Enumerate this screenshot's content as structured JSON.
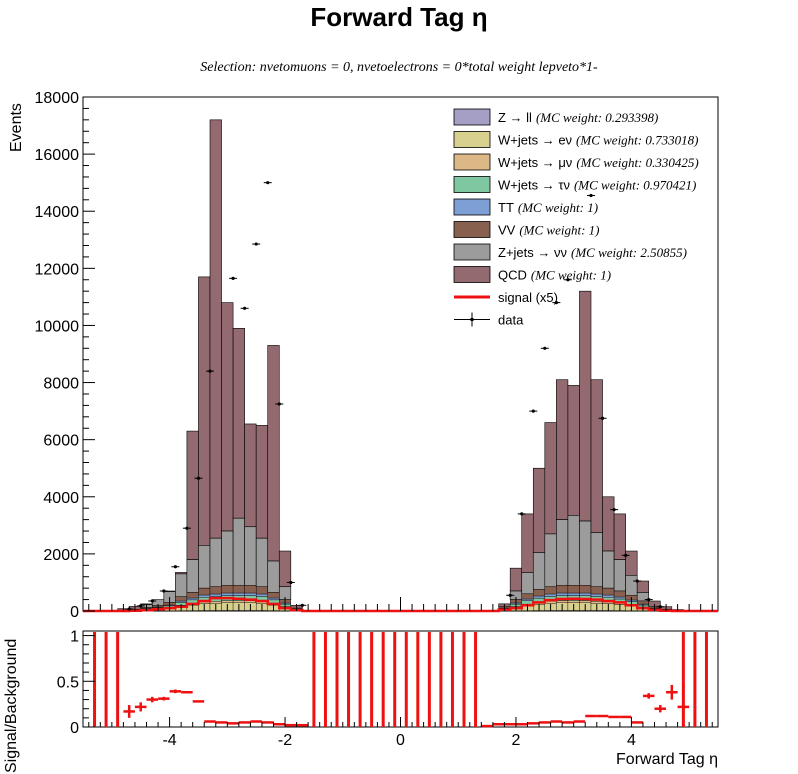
{
  "chart_data": [
    {
      "type": "stacked-histogram",
      "title": "Forward Tag η",
      "subtitle": "Selection: nvetomuons = 0, nvetoelectrons = 0*total weight lepveto*1-",
      "ylabel": "Events",
      "xlim": [
        -5.5,
        5.5
      ],
      "ylim": [
        0,
        18000
      ],
      "bin_width": 0.2,
      "x_ticks": [
        -4,
        -2,
        0,
        2,
        4
      ],
      "y_ticks": [
        0,
        2000,
        4000,
        6000,
        8000,
        10000,
        12000,
        14000,
        16000,
        18000
      ],
      "legend_position": "top-right",
      "legend": [
        {
          "label": "Z → ll",
          "weight": "(MC weight: 0.293398)",
          "color": "#a59ec5",
          "kind": "box"
        },
        {
          "label": "W+jets → eν",
          "weight": "(MC weight: 0.733018)",
          "color": "#d8d08e",
          "kind": "box"
        },
        {
          "label": "W+jets → μν",
          "weight": "(MC weight: 0.330425)",
          "color": "#dcb886",
          "kind": "box"
        },
        {
          "label": "W+jets → τν",
          "weight": "(MC weight: 0.970421)",
          "color": "#7fc7a0",
          "kind": "box"
        },
        {
          "label": "TT",
          "weight": "(MC weight: 1)",
          "color": "#7e9ed6",
          "kind": "box"
        },
        {
          "label": "VV",
          "weight": "(MC weight: 1)",
          "color": "#876050",
          "kind": "box"
        },
        {
          "label": "Z+jets → νν",
          "weight": "(MC weight: 2.50855)",
          "color": "#9c9c9c",
          "kind": "box"
        },
        {
          "label": "QCD",
          "weight": "(MC weight: 1)",
          "color": "#936a70",
          "kind": "box"
        },
        {
          "label": "signal (x5)",
          "weight": "",
          "color": "#ee1111",
          "kind": "line"
        },
        {
          "label": "data",
          "weight": "",
          "color": "#000000",
          "kind": "marker"
        }
      ],
      "bins": [
        {
          "x": -4.8,
          "bkg": 30,
          "top": 80,
          "sig": 0
        },
        {
          "x": -4.6,
          "bkg": 60,
          "top": 160,
          "sig": 10
        },
        {
          "x": -4.4,
          "bkg": 120,
          "top": 250,
          "sig": 25
        },
        {
          "x": -4.2,
          "bkg": 200,
          "top": 400,
          "sig": 60
        },
        {
          "x": -4.0,
          "bkg": 300,
          "top": 700,
          "sig": 100
        },
        {
          "x": -3.8,
          "bkg": 500,
          "top": 1350,
          "sig": 150
        },
        {
          "x": -3.6,
          "bkg": 650,
          "top": 6300,
          "sig": 250
        },
        {
          "x": -3.4,
          "bkg": 800,
          "top": 11700,
          "sig": 350
        },
        {
          "x": -3.2,
          "bkg": 850,
          "top": 17200,
          "sig": 450
        },
        {
          "x": -3.0,
          "bkg": 900,
          "top": 10800,
          "sig": 450
        },
        {
          "x": -2.8,
          "bkg": 900,
          "top": 9900,
          "sig": 430
        },
        {
          "x": -2.6,
          "bkg": 900,
          "top": 6550,
          "sig": 400
        },
        {
          "x": -2.4,
          "bkg": 850,
          "top": 6500,
          "sig": 350
        },
        {
          "x": -2.2,
          "bkg": 650,
          "top": 9300,
          "sig": 250
        },
        {
          "x": -2.0,
          "bkg": 400,
          "top": 2100,
          "sig": 100
        },
        {
          "x": -1.8,
          "bkg": 100,
          "top": 200,
          "sig": 30
        },
        {
          "x": 1.8,
          "bkg": 150,
          "top": 250,
          "sig": 50
        },
        {
          "x": 2.0,
          "bkg": 400,
          "top": 1500,
          "sig": 100
        },
        {
          "x": 2.2,
          "bkg": 600,
          "top": 3400,
          "sig": 200
        },
        {
          "x": 2.4,
          "bkg": 750,
          "top": 5000,
          "sig": 300
        },
        {
          "x": 2.6,
          "bkg": 850,
          "top": 6600,
          "sig": 380
        },
        {
          "x": 2.8,
          "bkg": 900,
          "top": 8100,
          "sig": 420
        },
        {
          "x": 3.0,
          "bkg": 900,
          "top": 7900,
          "sig": 430
        },
        {
          "x": 3.2,
          "bkg": 900,
          "top": 11200,
          "sig": 420
        },
        {
          "x": 3.4,
          "bkg": 850,
          "top": 8100,
          "sig": 400
        },
        {
          "x": 3.6,
          "bkg": 800,
          "top": 4000,
          "sig": 350
        },
        {
          "x": 3.8,
          "bkg": 700,
          "top": 3400,
          "sig": 300
        },
        {
          "x": 4.0,
          "bkg": 550,
          "top": 2100,
          "sig": 200
        },
        {
          "x": 4.2,
          "bkg": 350,
          "top": 1050,
          "sig": 100
        },
        {
          "x": 4.4,
          "bkg": 150,
          "top": 350,
          "sig": 40
        },
        {
          "x": 4.6,
          "bkg": 60,
          "top": 150,
          "sig": 10
        },
        {
          "x": 4.8,
          "bkg": 20,
          "top": 50,
          "sig": 0
        }
      ],
      "layers": [
        {
          "name": "Z → ll",
          "color": "#a59ec5",
          "frac": 0.02
        },
        {
          "name": "W+jets → eν",
          "color": "#d8d08e",
          "frac": 0.3
        },
        {
          "name": "W+jets → μν",
          "color": "#dcb886",
          "frac": 0.08
        },
        {
          "name": "W+jets → τν",
          "color": "#7fc7a0",
          "frac": 0.2
        },
        {
          "name": "TT",
          "color": "#7e9ed6",
          "frac": 0.1
        },
        {
          "name": "VV",
          "color": "#876050",
          "frac": 0.3
        }
      ],
      "znn": [
        {
          "x": -4.4,
          "v": 100
        },
        {
          "x": -4.2,
          "v": 250
        },
        {
          "x": -4.0,
          "v": 380
        },
        {
          "x": -3.8,
          "v": 800
        },
        {
          "x": -3.6,
          "v": 1150
        },
        {
          "x": -3.4,
          "v": 1500
        },
        {
          "x": -3.2,
          "v": 1700
        },
        {
          "x": -3.0,
          "v": 1900
        },
        {
          "x": -2.8,
          "v": 2350
        },
        {
          "x": -2.6,
          "v": 2050
        },
        {
          "x": -2.4,
          "v": 1700
        },
        {
          "x": -2.2,
          "v": 1100
        },
        {
          "x": -2.0,
          "v": 450
        },
        {
          "x": 2.0,
          "v": 300
        },
        {
          "x": 2.2,
          "v": 750
        },
        {
          "x": 2.4,
          "v": 1300
        },
        {
          "x": 2.6,
          "v": 1850
        },
        {
          "x": 2.8,
          "v": 2300
        },
        {
          "x": 3.0,
          "v": 2450
        },
        {
          "x": 3.2,
          "v": 2250
        },
        {
          "x": 3.4,
          "v": 1900
        },
        {
          "x": 3.6,
          "v": 1300
        },
        {
          "x": 3.8,
          "v": 1100
        },
        {
          "x": 4.0,
          "v": 700
        },
        {
          "x": 4.2,
          "v": 300
        }
      ],
      "data_points": [
        {
          "x": -4.7,
          "y": 70
        },
        {
          "x": -4.5,
          "y": 180
        },
        {
          "x": -4.3,
          "y": 350
        },
        {
          "x": -4.1,
          "y": 700
        },
        {
          "x": -3.9,
          "y": 1550
        },
        {
          "x": -3.7,
          "y": 2900
        },
        {
          "x": -3.5,
          "y": 4650
        },
        {
          "x": -3.3,
          "y": 8400
        },
        {
          "x": -2.9,
          "y": 11650
        },
        {
          "x": -2.7,
          "y": 10600
        },
        {
          "x": -2.5,
          "y": 12850
        },
        {
          "x": -2.3,
          "y": 15000
        },
        {
          "x": -2.1,
          "y": 7250
        },
        {
          "x": -1.9,
          "y": 1000
        },
        {
          "x": -1.7,
          "y": 200
        },
        {
          "x": 1.9,
          "y": 550
        },
        {
          "x": 2.1,
          "y": 3400
        },
        {
          "x": 2.3,
          "y": 7000
        },
        {
          "x": 2.5,
          "y": 9200
        },
        {
          "x": 2.7,
          "y": 10800
        },
        {
          "x": 2.9,
          "y": 11600
        },
        {
          "x": 3.3,
          "y": 14550
        },
        {
          "x": 3.5,
          "y": 6750
        },
        {
          "x": 3.7,
          "y": 3550
        },
        {
          "x": 3.9,
          "y": 1950
        },
        {
          "x": 4.1,
          "y": 1050
        },
        {
          "x": 4.3,
          "y": 400
        },
        {
          "x": 4.5,
          "y": 150
        }
      ]
    },
    {
      "type": "ratio",
      "ylabel": "Signal/Background",
      "xlabel": "Forward Tag η",
      "xlim": [
        -5.5,
        5.5
      ],
      "ylim": [
        0,
        1.05
      ],
      "x_ticks": [
        -4,
        -2,
        0,
        2,
        4
      ],
      "y_ticks": [
        0,
        0.5,
        1
      ],
      "y_tick_labels": [
        "0",
        "0.5",
        "1"
      ],
      "full_bins_x": [
        -5.3,
        -5.1,
        -4.9,
        -1.5,
        -1.3,
        -1.1,
        -0.9,
        -0.7,
        -0.5,
        -0.3,
        -0.1,
        0.1,
        0.3,
        0.5,
        0.7,
        0.9,
        1.1,
        1.3,
        4.9,
        5.1,
        5.3
      ],
      "points": [
        {
          "x": -4.7,
          "y": 0.17,
          "e": 0.07
        },
        {
          "x": -4.5,
          "y": 0.22,
          "e": 0.05
        },
        {
          "x": -4.3,
          "y": 0.3,
          "e": 0.03
        },
        {
          "x": -4.1,
          "y": 0.31,
          "e": 0.02
        },
        {
          "x": -3.9,
          "y": 0.39,
          "e": 0.02
        },
        {
          "x": -3.7,
          "y": 0.38,
          "e": 0.01
        },
        {
          "x": -3.5,
          "y": 0.28,
          "e": 0.01
        },
        {
          "x": -3.3,
          "y": 0.06,
          "e": 0.01
        },
        {
          "x": -3.1,
          "y": 0.05,
          "e": 0.01
        },
        {
          "x": -2.9,
          "y": 0.04,
          "e": 0.01
        },
        {
          "x": -2.7,
          "y": 0.05,
          "e": 0.01
        },
        {
          "x": -2.5,
          "y": 0.06,
          "e": 0.01
        },
        {
          "x": -2.3,
          "y": 0.05,
          "e": 0.01
        },
        {
          "x": -2.1,
          "y": 0.03,
          "e": 0.01
        },
        {
          "x": -1.9,
          "y": 0.02,
          "e": 0.01
        },
        {
          "x": -1.7,
          "y": 0.02,
          "e": 0.01
        },
        {
          "x": 1.5,
          "y": 0.01,
          "e": 0.01
        },
        {
          "x": 1.7,
          "y": 0.03,
          "e": 0.01
        },
        {
          "x": 1.9,
          "y": 0.03,
          "e": 0.01
        },
        {
          "x": 2.1,
          "y": 0.03,
          "e": 0.01
        },
        {
          "x": 2.3,
          "y": 0.04,
          "e": 0.01
        },
        {
          "x": 2.5,
          "y": 0.05,
          "e": 0.01
        },
        {
          "x": 2.7,
          "y": 0.06,
          "e": 0.01
        },
        {
          "x": 2.9,
          "y": 0.05,
          "e": 0.01
        },
        {
          "x": 3.1,
          "y": 0.06,
          "e": 0.01
        },
        {
          "x": 3.3,
          "y": 0.12,
          "e": 0.01
        },
        {
          "x": 3.5,
          "y": 0.12,
          "e": 0.01
        },
        {
          "x": 3.7,
          "y": 0.11,
          "e": 0.01
        },
        {
          "x": 3.9,
          "y": 0.11,
          "e": 0.01
        },
        {
          "x": 4.1,
          "y": 0.05,
          "e": 0.01
        },
        {
          "x": 4.3,
          "y": 0.34,
          "e": 0.03
        },
        {
          "x": 4.5,
          "y": 0.2,
          "e": 0.04
        },
        {
          "x": 4.7,
          "y": 0.38,
          "e": 0.08
        },
        {
          "x": 4.9,
          "y": 0.22,
          "e": 0.25
        }
      ]
    }
  ]
}
